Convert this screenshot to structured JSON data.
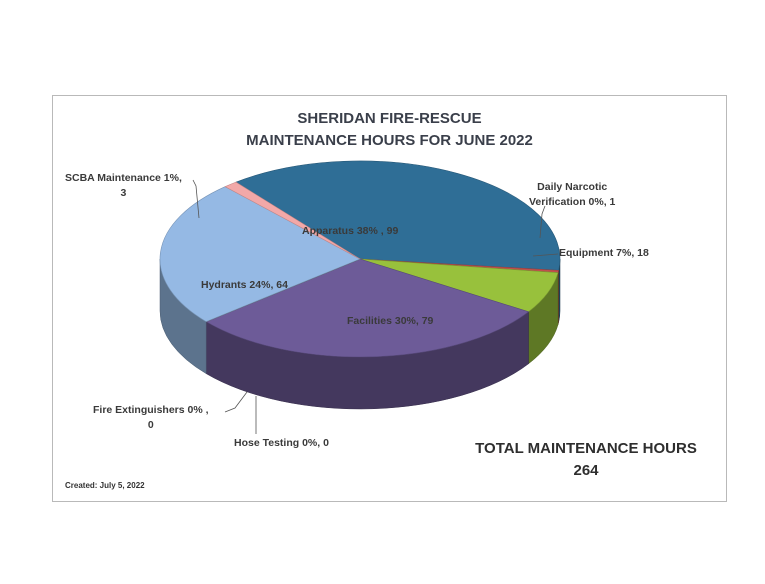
{
  "chart_data": {
    "type": "pie",
    "title": [
      "SHERIDAN FIRE-RESCUE",
      "MAINTENANCE HOURS FOR JUNE 2022"
    ],
    "slices": [
      {
        "name": "Apparatus",
        "value": 99,
        "percent": "38%",
        "label": "Apparatus  38% , 99",
        "color": "#2f6e96"
      },
      {
        "name": "Daily Narcotic Verification",
        "value": 1,
        "percent": "0%",
        "label_lines": [
          "Daily Narcotic",
          "Verification  0%, 1"
        ],
        "color": "#c0504d"
      },
      {
        "name": "Equipment",
        "value": 18,
        "percent": "7%",
        "label": "Equipment   7%, 18",
        "color": "#98c13c"
      },
      {
        "name": "Facilities",
        "value": 79,
        "percent": "30%",
        "label": "Facilities  30%, 79",
        "color": "#6d5b98"
      },
      {
        "name": "Hose Testing",
        "value": 0,
        "percent": "0%",
        "label": "Hose Testing  0%, 0",
        "color": "#4f81bd"
      },
      {
        "name": "Fire Extinguishers",
        "value": 0,
        "percent": "0%",
        "label_lines": [
          "Fire Extinguishers  0% ,",
          "0"
        ],
        "color": "#8db3e2"
      },
      {
        "name": "Hydrants",
        "value": 64,
        "percent": "24%",
        "label": "Hydrants  24%, 64",
        "color": "#95b9e4"
      },
      {
        "name": "SCBA Maintenance",
        "value": 3,
        "percent": "1%",
        "label_lines": [
          "SCBA Maintenance  1%,",
          "3"
        ],
        "color": "#f2a8a8"
      }
    ]
  },
  "total": {
    "line1": "TOTAL MAINTENANCE HOURS",
    "line2": "264"
  },
  "created": "Created:  July 5, 2022"
}
